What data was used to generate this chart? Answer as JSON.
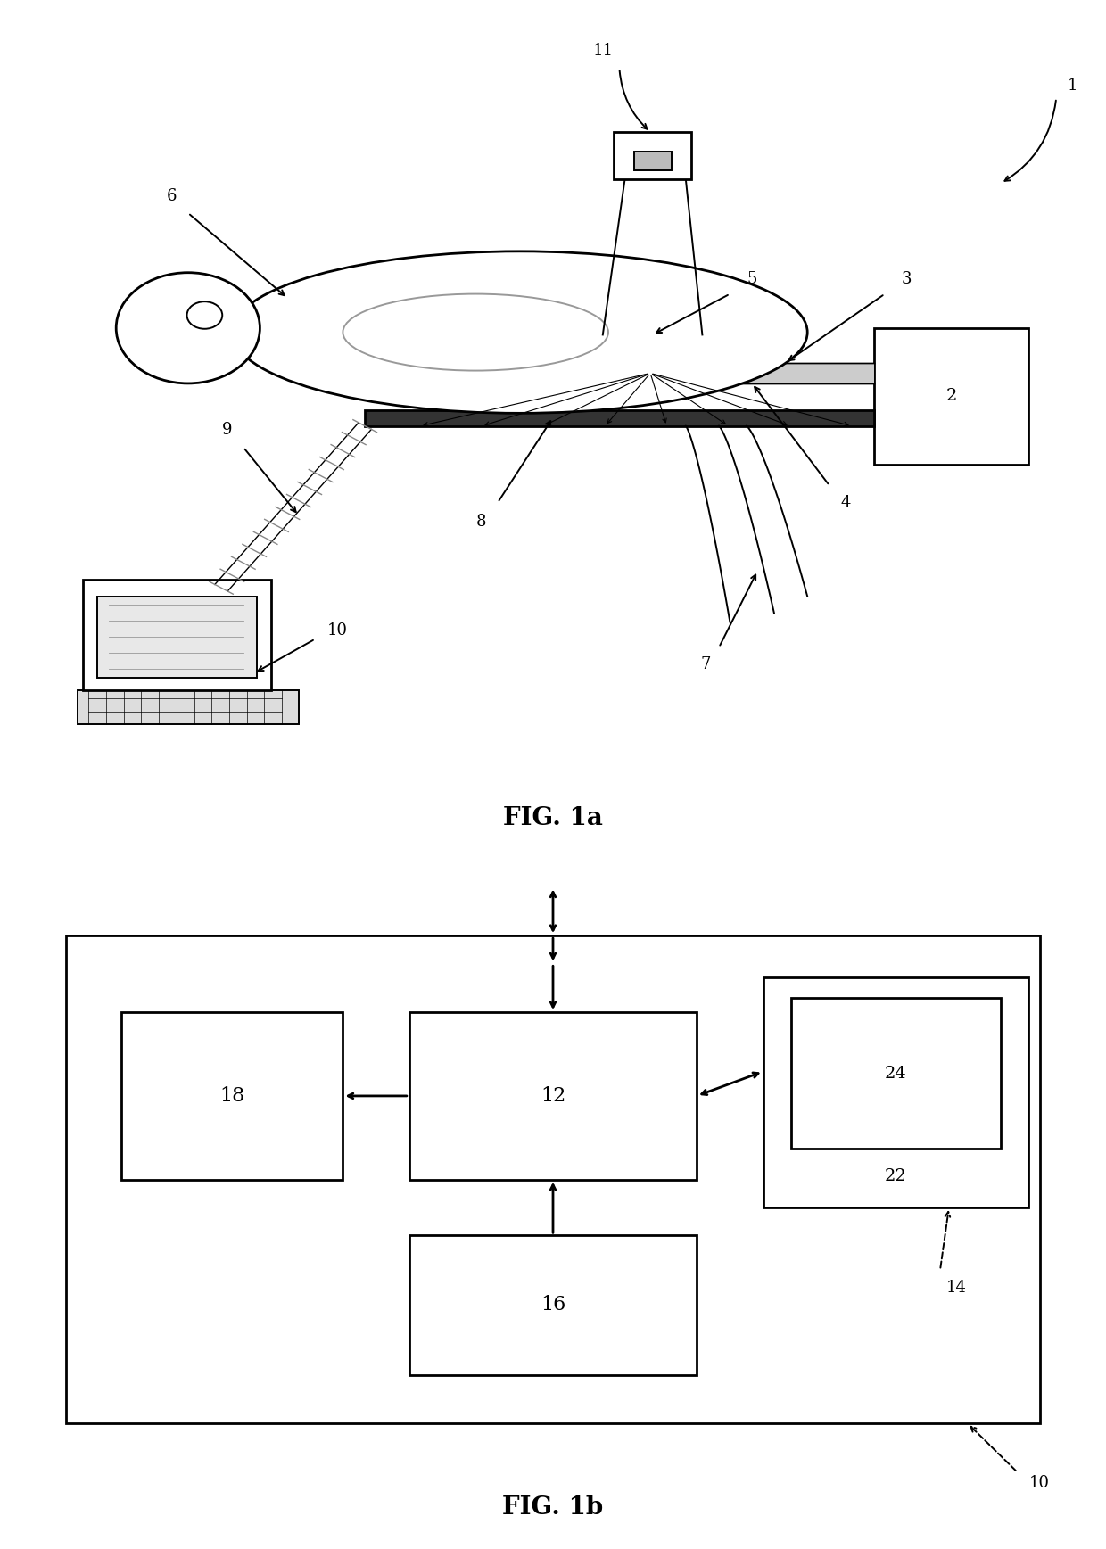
{
  "fig_width": 12.4,
  "fig_height": 17.37,
  "bg_color": "#ffffff",
  "fig1a_title": "FIG. 1a",
  "fig1b_title": "FIG. 1b",
  "title_fontsize": 20,
  "number_fontsize": 13
}
